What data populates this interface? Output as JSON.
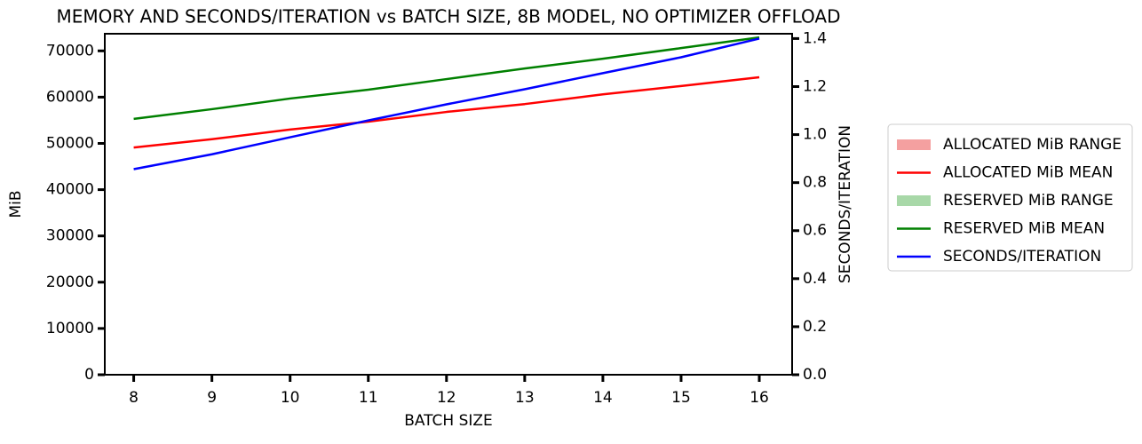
{
  "chart_data": {
    "type": "line",
    "title": "MEMORY AND SECONDS/ITERATION vs BATCH SIZE, 8B MODEL, NO OPTIMIZER OFFLOAD",
    "x_label": "BATCH SIZE",
    "y_label": "MiB",
    "y2_label": "SECONDS/ITERATION",
    "x": [
      8,
      9,
      10,
      11,
      12,
      13,
      14,
      15,
      16
    ],
    "xlim": [
      7.63,
      16.42
    ],
    "xticks": [
      8,
      9,
      10,
      11,
      12,
      13,
      14,
      15,
      16
    ],
    "ylim": [
      0,
      73700
    ],
    "yticks": [
      0,
      10000,
      20000,
      30000,
      40000,
      50000,
      60000,
      70000
    ],
    "y2lim": [
      0,
      1.42
    ],
    "y2ticks": [
      {
        "value": 0,
        "label": "0.0"
      },
      0.2,
      0.4,
      0.6,
      0.8,
      {
        "value": 1,
        "label": "1.0"
      },
      1.2,
      1.4
    ],
    "legend": "outside right",
    "series": [
      {
        "name": "ALLOCATED MiB RANGE",
        "color": "#f4a0a0",
        "kind": "band",
        "low": [
          49100,
          50900,
          53000,
          54700,
          56800,
          58500,
          60600,
          62400,
          64300
        ],
        "high": [
          49100,
          50900,
          53000,
          54700,
          56800,
          58500,
          60600,
          62400,
          64300
        ]
      },
      {
        "name": "ALLOCATED MiB MEAN",
        "color": "#ff0000",
        "kind": "line",
        "values": [
          49100,
          50900,
          53000,
          54700,
          56800,
          58500,
          60600,
          62400,
          64300
        ]
      },
      {
        "name": "RESERVED MiB RANGE",
        "color": "#a8d8a8",
        "kind": "band",
        "low": [
          55300,
          57400,
          59700,
          61600,
          63900,
          66200,
          68300,
          70600,
          72900
        ],
        "high": [
          55300,
          57400,
          59700,
          61600,
          63900,
          66200,
          68300,
          70600,
          72900
        ]
      },
      {
        "name": "RESERVED MiB MEAN",
        "color": "#008000",
        "kind": "line",
        "values": [
          55300,
          57400,
          59700,
          61600,
          63900,
          66200,
          68300,
          70600,
          72900
        ]
      },
      {
        "name": "SECONDS/ITERATION",
        "color": "#0000ff",
        "kind": "line",
        "axis": "y2",
        "values": [
          0.856,
          0.918,
          0.989,
          1.059,
          1.126,
          1.189,
          1.256,
          1.322,
          1.4
        ]
      }
    ]
  }
}
